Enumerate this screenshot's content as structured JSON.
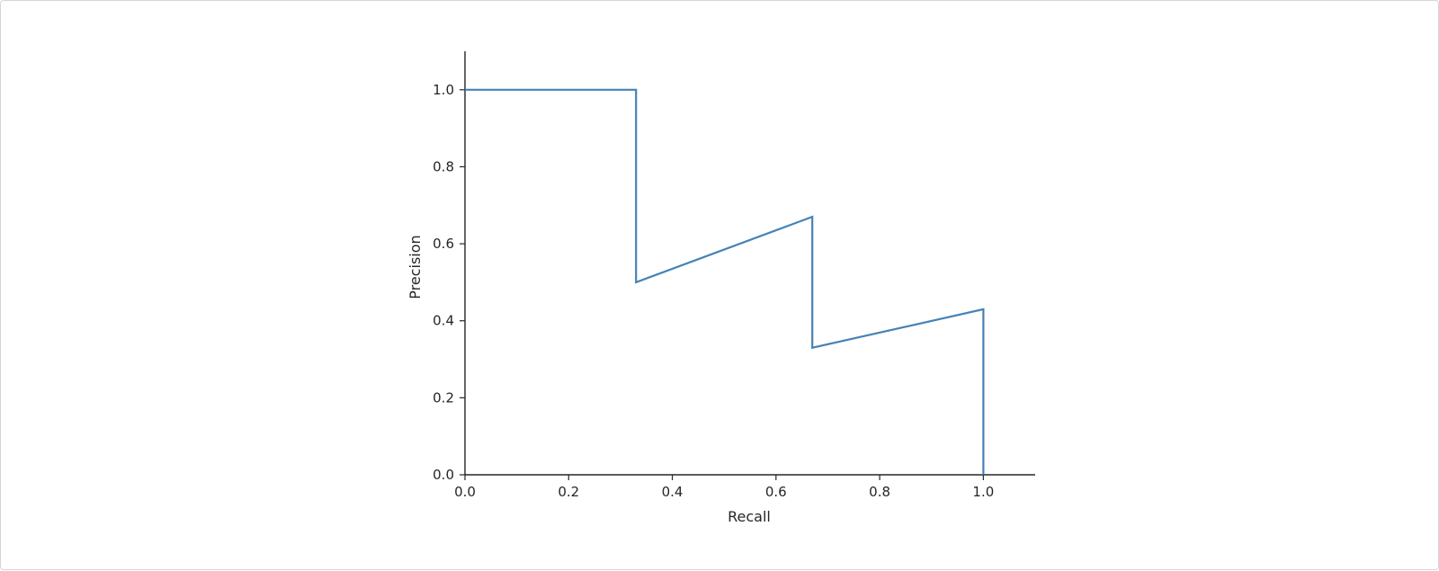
{
  "chart_data": {
    "type": "line",
    "title": "",
    "xlabel": "Recall",
    "ylabel": "Precision",
    "xlim": [
      0,
      1.1
    ],
    "ylim": [
      0,
      1.1
    ],
    "x_ticks": [
      "0.0",
      "0.2",
      "0.4",
      "0.6",
      "0.8",
      "1.0"
    ],
    "y_ticks": [
      "0.0",
      "0.2",
      "0.4",
      "0.6",
      "0.8",
      "1.0"
    ],
    "grid": false,
    "legend": "none",
    "step": true,
    "series": [
      {
        "color": "#4682b4",
        "points": [
          [
            0.0,
            1.0
          ],
          [
            0.33,
            1.0
          ],
          [
            0.33,
            0.5
          ],
          [
            0.67,
            0.67
          ],
          [
            0.67,
            0.33
          ],
          [
            1.0,
            0.43
          ],
          [
            1.0,
            0.0
          ]
        ]
      }
    ]
  }
}
